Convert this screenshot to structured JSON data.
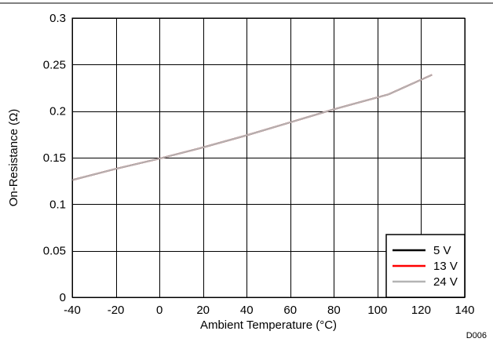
{
  "chart_data": {
    "type": "line",
    "title": "",
    "xlabel": "Ambient Temperature (°C)",
    "ylabel": "On-Resistance (Ω)",
    "xlim": [
      -40,
      140
    ],
    "ylim": [
      0,
      0.3
    ],
    "x_ticks": [
      -40,
      -20,
      0,
      20,
      40,
      60,
      80,
      100,
      120,
      140
    ],
    "x_tick_labels": [
      "-40",
      "-20",
      "0",
      "20",
      "40",
      "60",
      "80",
      "100",
      "120",
      "140"
    ],
    "y_ticks": [
      0,
      0.05,
      0.1,
      0.15,
      0.2,
      0.25,
      0.3
    ],
    "y_tick_labels": [
      "0",
      "0.05",
      "0.1",
      "0.15",
      "0.2",
      "0.25",
      "0.3"
    ],
    "grid": true,
    "legend_position": "bottom-right",
    "series": [
      {
        "name": "5 V",
        "color": "#000000",
        "x": [
          -40,
          -20,
          0,
          20,
          40,
          60,
          80,
          105,
          125
        ],
        "y": [
          0.126,
          0.138,
          0.149,
          0.161,
          0.174,
          0.188,
          0.202,
          0.218,
          0.239
        ]
      },
      {
        "name": "13 V",
        "color": "#ff0000",
        "x": [
          -40,
          -20,
          0,
          20,
          40,
          60,
          80,
          105,
          125
        ],
        "y": [
          0.126,
          0.138,
          0.149,
          0.161,
          0.174,
          0.188,
          0.202,
          0.218,
          0.239
        ]
      },
      {
        "name": "24 V",
        "color": "#b4b4b4",
        "x": [
          -40,
          -20,
          0,
          20,
          40,
          60,
          80,
          105,
          125
        ],
        "y": [
          0.126,
          0.138,
          0.149,
          0.161,
          0.174,
          0.188,
          0.202,
          0.218,
          0.239
        ]
      }
    ],
    "annotations": [
      "D006"
    ]
  }
}
